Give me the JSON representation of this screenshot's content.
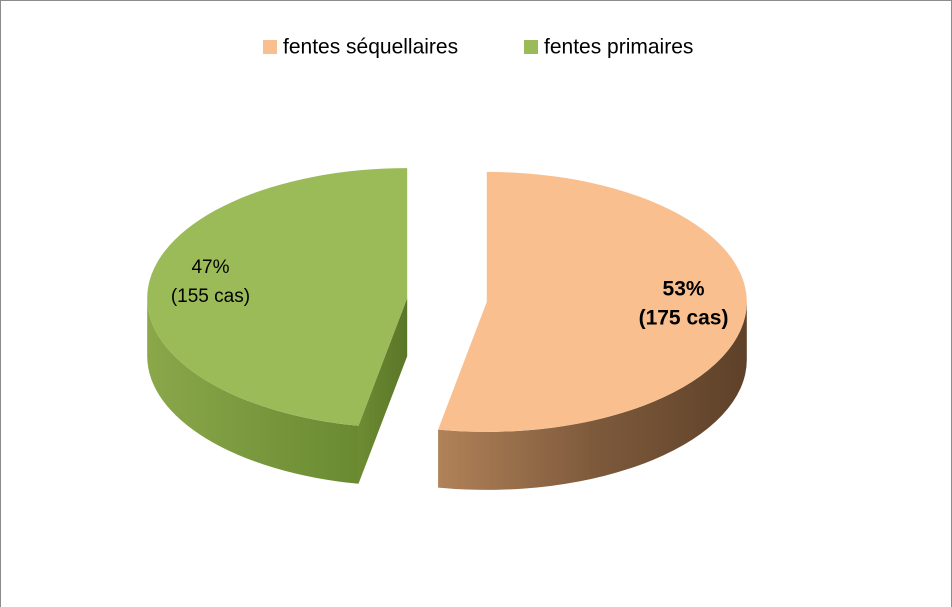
{
  "chart_data": {
    "type": "pie",
    "categories": [
      "fentes séquellaires",
      "fentes primaires"
    ],
    "values": [
      53,
      47
    ],
    "value_labels": [
      "53%",
      "47%"
    ],
    "count_labels": [
      "(175 cas)",
      "(155 cas)"
    ],
    "colors": [
      "#f9bf8f",
      "#9bbb59"
    ],
    "legend": "top"
  }
}
